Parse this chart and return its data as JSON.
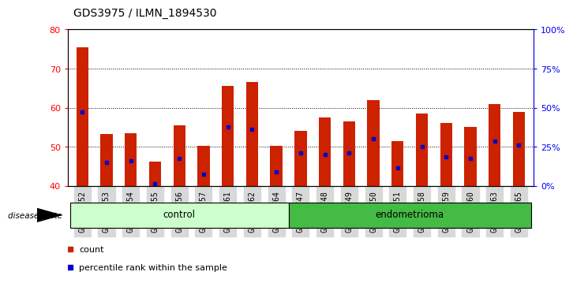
{
  "title": "GDS3975 / ILMN_1894530",
  "samples": [
    "GSM572752",
    "GSM572753",
    "GSM572754",
    "GSM572755",
    "GSM572756",
    "GSM572757",
    "GSM572761",
    "GSM572762",
    "GSM572764",
    "GSM572747",
    "GSM572748",
    "GSM572749",
    "GSM572750",
    "GSM572751",
    "GSM572758",
    "GSM572759",
    "GSM572760",
    "GSM572763",
    "GSM572765"
  ],
  "counts": [
    75.5,
    53.2,
    53.5,
    46.2,
    55.5,
    50.2,
    65.5,
    66.5,
    50.2,
    54.0,
    57.5,
    56.5,
    62.0,
    51.5,
    58.5,
    56.0,
    55.0,
    61.0,
    59.0
  ],
  "percentile_rank": [
    59.0,
    46.0,
    46.5,
    40.5,
    47.0,
    43.0,
    55.0,
    54.5,
    43.5,
    48.5,
    48.0,
    48.5,
    52.0,
    44.5,
    50.0,
    47.5,
    47.0,
    51.5,
    50.5
  ],
  "y_min": 40,
  "y_max": 80,
  "y_ticks_left": [
    40,
    50,
    60,
    70,
    80
  ],
  "y_ticks_right": [
    0,
    25,
    50,
    75,
    100
  ],
  "bar_color": "#cc2200",
  "marker_color": "#0000cc",
  "control_count": 9,
  "endometrioma_count": 10,
  "group_labels": [
    "control",
    "endometrioma"
  ],
  "legend_items": [
    "count",
    "percentile rank within the sample"
  ],
  "disease_label": "disease state",
  "bg_color": "#d8d8d8",
  "ctrl_color": "#ccffcc",
  "endo_color": "#44bb44",
  "title_fontsize": 10,
  "tick_fontsize": 7,
  "bar_width": 0.5
}
